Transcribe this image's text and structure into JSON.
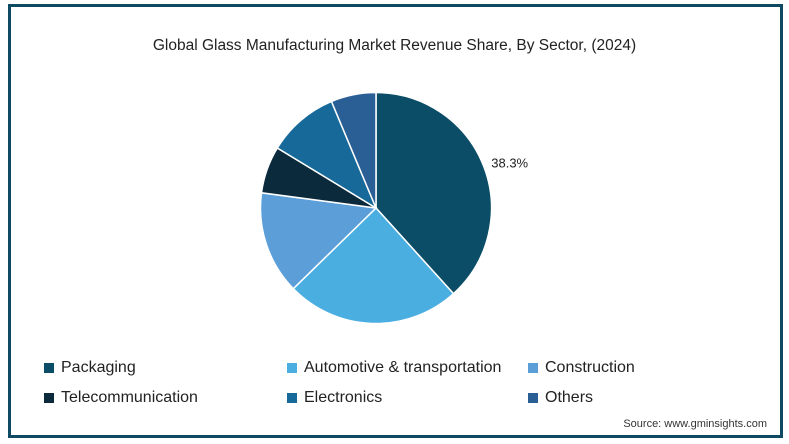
{
  "chart_data": {
    "type": "pie",
    "title": "Global Glass Manufacturing Market Revenue Share, By Sector, (2024)",
    "categories": [
      "Packaging",
      "Automotive & transportation",
      "Construction",
      "Telecommunication",
      "Electronics",
      "Others"
    ],
    "values": [
      38.3,
      24.4,
      14.4,
      6.6,
      10.0,
      6.3
    ],
    "unit": "%",
    "colors": [
      "#0b4d66",
      "#4aaee0",
      "#5b9ed8",
      "#0b2a3c",
      "#17699a",
      "#2a5f95"
    ],
    "data_labels": [
      {
        "category": "Packaging",
        "text": "38.3%"
      }
    ],
    "start_angle": "12 o'clock, clockwise",
    "legend_position": "bottom"
  },
  "legend": [
    {
      "label": "Packaging",
      "color": "#0b4d66"
    },
    {
      "label": "Automotive & transportation",
      "color": "#4aaee0"
    },
    {
      "label": "Construction",
      "color": "#5b9ed8"
    },
    {
      "label": "Telecommunication",
      "color": "#0b2a3c"
    },
    {
      "label": "Electronics",
      "color": "#17699a"
    },
    {
      "label": "Others",
      "color": "#2a5f95"
    }
  ],
  "source": "Source: www.gminsights.com",
  "frame_color": "#0f4a63"
}
